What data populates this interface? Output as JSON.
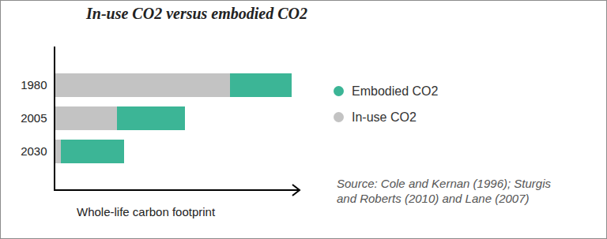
{
  "chart_data": {
    "type": "bar",
    "title": "In-use CO2 versus embodied CO2",
    "orientation": "horizontal",
    "stacked": true,
    "categories": [
      "1980",
      "2005",
      "2030"
    ],
    "series": [
      {
        "name": "Embodied CO2",
        "color": "#3cb596",
        "values": [
          78,
          86,
          80
        ]
      },
      {
        "name": "In-use CO2",
        "color": "#c3c3c3",
        "values": [
          222,
          79,
          8
        ]
      }
    ],
    "xlabel": "Whole-life carbon footprint",
    "xlim": [
      0,
      310
    ],
    "xticks": [],
    "tick_labels": "y",
    "legend": "right",
    "annotations": [
      "Source: Cole and Kernan (1996); Sturgis and Roberts (2010) and Lane (2007)"
    ]
  }
}
